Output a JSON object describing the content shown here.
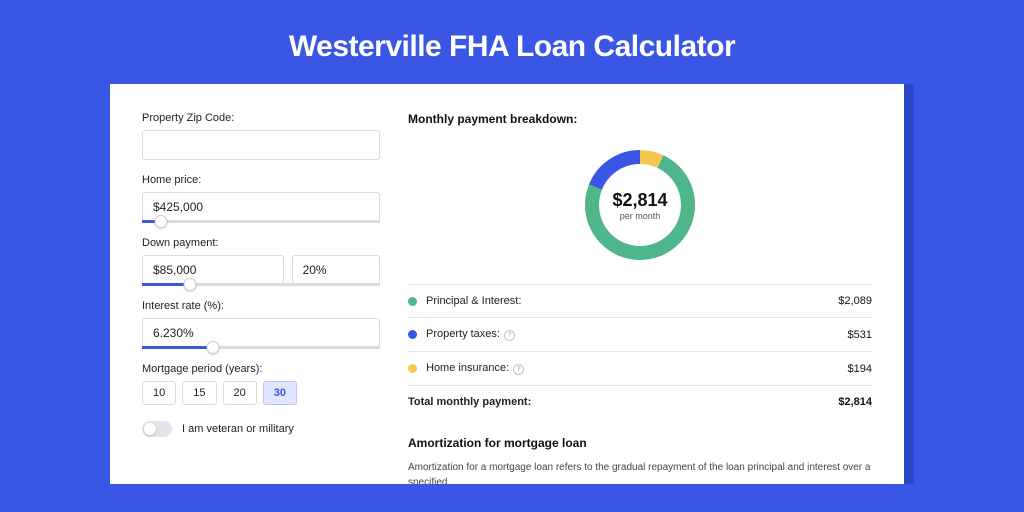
{
  "hero": {
    "title": "Westerville FHA Loan Calculator"
  },
  "colors": {
    "accent": "#3956e5",
    "bg": "#3956e5",
    "shadow": "#2d47c9",
    "card": "#ffffff",
    "border": "#d9dbe0",
    "text": "#222222",
    "principal": "#4fb58b",
    "taxes": "#3956e5",
    "insurance": "#f4c952"
  },
  "form": {
    "zip": {
      "label": "Property Zip Code:",
      "value": ""
    },
    "home_price": {
      "label": "Home price:",
      "value": "$425,000",
      "slider_pct": 8
    },
    "down_payment": {
      "label": "Down payment:",
      "value": "$85,000",
      "pct": "20%",
      "slider_pct": 20
    },
    "interest_rate": {
      "label": "Interest rate (%):",
      "value": "6.230%",
      "slider_pct": 30
    },
    "period": {
      "label": "Mortgage period (years):",
      "options": [
        "10",
        "15",
        "20",
        "30"
      ],
      "active": "30"
    },
    "veteran": {
      "label": "I am veteran or military",
      "on": false
    }
  },
  "breakdown": {
    "title": "Monthly payment breakdown:",
    "donut": {
      "amount": "$2,814",
      "sub": "per month"
    },
    "items": [
      {
        "key": "principal",
        "label": "Principal & Interest:",
        "value": "$2,089",
        "color": "#4fb58b",
        "pct": 74,
        "info": false
      },
      {
        "key": "taxes",
        "label": "Property taxes:",
        "value": "$531",
        "color": "#3956e5",
        "pct": 19,
        "info": true
      },
      {
        "key": "insurance",
        "label": "Home insurance:",
        "value": "$194",
        "color": "#f4c952",
        "pct": 7,
        "info": true
      }
    ],
    "total": {
      "label": "Total monthly payment:",
      "value": "$2,814"
    }
  },
  "amort": {
    "title": "Amortization for mortgage loan",
    "text": "Amortization for a mortgage loan refers to the gradual repayment of the loan principal and interest over a specified"
  }
}
